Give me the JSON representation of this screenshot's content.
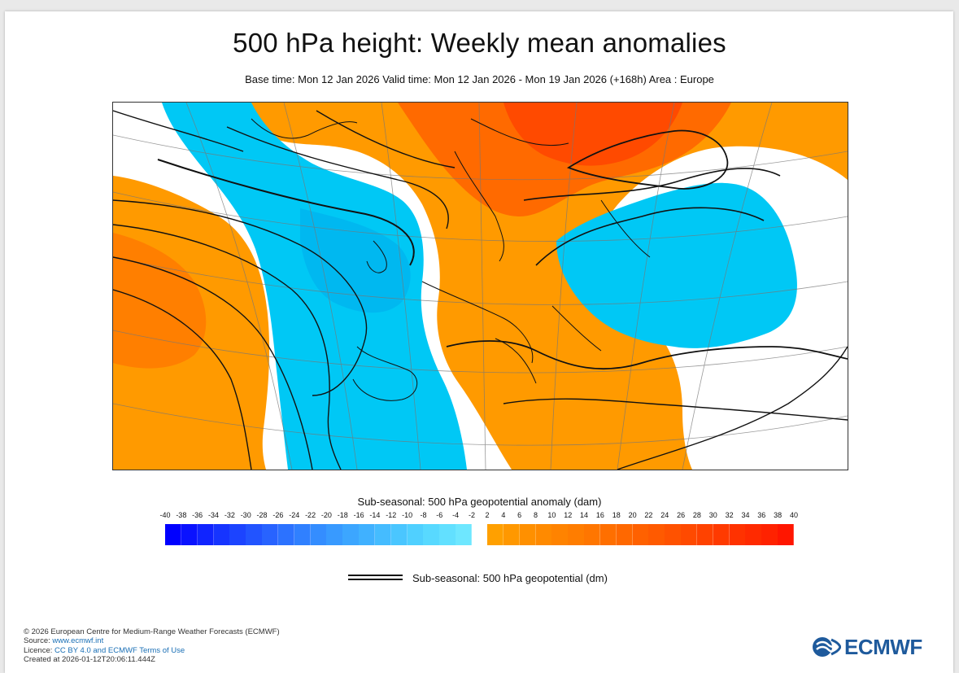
{
  "title": "500 hPa height: Weekly mean anomalies",
  "subtitle": "Base time: Mon 12 Jan 2026 Valid time: Mon 12 Jan 2026 - Mon 19 Jan 2026 (+168h) Area : Europe",
  "colorbar": {
    "title": "Sub-seasonal: 500 hPa geopotential anomaly (dam)",
    "ticks": [
      "-40",
      "-38",
      "-36",
      "-34",
      "-32",
      "-30",
      "-28",
      "-26",
      "-24",
      "-22",
      "-20",
      "-18",
      "-16",
      "-14",
      "-12",
      "-10",
      "-8",
      "-6",
      "-4",
      "-2",
      "2",
      "4",
      "6",
      "8",
      "10",
      "12",
      "14",
      "16",
      "18",
      "20",
      "22",
      "24",
      "26",
      "28",
      "30",
      "32",
      "34",
      "36",
      "38",
      "40"
    ],
    "negative_colors": [
      "#0000ff",
      "#0a12ff",
      "#1024ff",
      "#1634ff",
      "#1c44ff",
      "#2254ff",
      "#2863ff",
      "#2c72ff",
      "#3080ff",
      "#348dff",
      "#389aff",
      "#3ca6ff",
      "#40b1ff",
      "#45bcff",
      "#4ac6ff",
      "#50d0ff",
      "#58d9ff",
      "#62e0ff",
      "#6ee7ff"
    ],
    "positive_colors": [
      "#ffa000",
      "#ff9800",
      "#ff9000",
      "#ff8a00",
      "#ff8300",
      "#ff7d00",
      "#ff7600",
      "#ff6f00",
      "#ff6800",
      "#ff6100",
      "#ff5a00",
      "#ff5200",
      "#ff4a00",
      "#ff4200",
      "#ff3a00",
      "#ff3200",
      "#ff2a00",
      "#ff2200",
      "#ff1600"
    ]
  },
  "legend": {
    "line_label": "Sub-seasonal: 500 hPa geopotential (dm)"
  },
  "footer": {
    "copyright": "© 2026 European Centre for Medium-Range Weather Forecasts (ECMWF)",
    "source_prefix": "Source: ",
    "source_link": "www.ecmwf.int",
    "licence_prefix": "Licence: ",
    "licence_link": "CC BY 4.0 and ECMWF Terms of Use",
    "created": "Created at 2026-01-12T20:06:11.444Z"
  },
  "logo": {
    "text": "ECMWF"
  },
  "map": {
    "region": "Europe",
    "anomaly_fields": [
      {
        "name": "negative",
        "color": "#00c8f5",
        "label": "negative anomaly"
      },
      {
        "name": "positive",
        "color": "#ff9a00",
        "label": "positive anomaly"
      },
      {
        "name": "strong-positive",
        "color": "#ff5a00",
        "label": "strong positive anomaly"
      }
    ]
  }
}
